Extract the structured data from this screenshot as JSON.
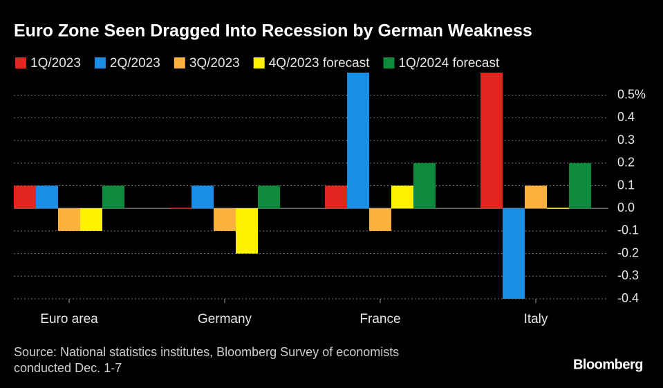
{
  "chart_data": {
    "type": "bar",
    "title": "Euro Zone Seen Dragged Into Recession by German Weakness",
    "categories": [
      "Euro area",
      "Germany",
      "France",
      "Italy"
    ],
    "series": [
      {
        "name": "1Q/2023",
        "color": "#e0261f",
        "values": [
          0.1,
          0.0,
          0.1,
          0.6
        ]
      },
      {
        "name": "2Q/2023",
        "color": "#1a8ee6",
        "values": [
          0.1,
          0.1,
          0.6,
          -0.4
        ]
      },
      {
        "name": "3Q/2023",
        "color": "#fbb13c",
        "values": [
          -0.1,
          -0.1,
          -0.1,
          0.1
        ]
      },
      {
        "name": "4Q/2023 forecast",
        "color": "#fff200",
        "values": [
          -0.1,
          -0.2,
          0.1,
          0.0
        ]
      },
      {
        "name": "1Q/2024 forecast",
        "color": "#0d8a3c",
        "values": [
          0.1,
          0.1,
          0.2,
          0.2
        ]
      }
    ],
    "ylim": [
      -0.4,
      0.6
    ],
    "yticks": [
      {
        "value": -0.4,
        "label": "-0.4"
      },
      -0.3,
      -0.2,
      -0.1,
      {
        "value": 0,
        "label": "0.0"
      },
      0.1,
      0.2,
      0.3,
      0.4,
      {
        "value": 0.5,
        "label": "0.5%"
      }
    ],
    "yaxis_side": "right",
    "grid": true,
    "source": [
      "Source: National statistics institutes, Bloomberg Survey of economists",
      "conducted Dec. 1-7"
    ],
    "brand": "Bloomberg"
  }
}
